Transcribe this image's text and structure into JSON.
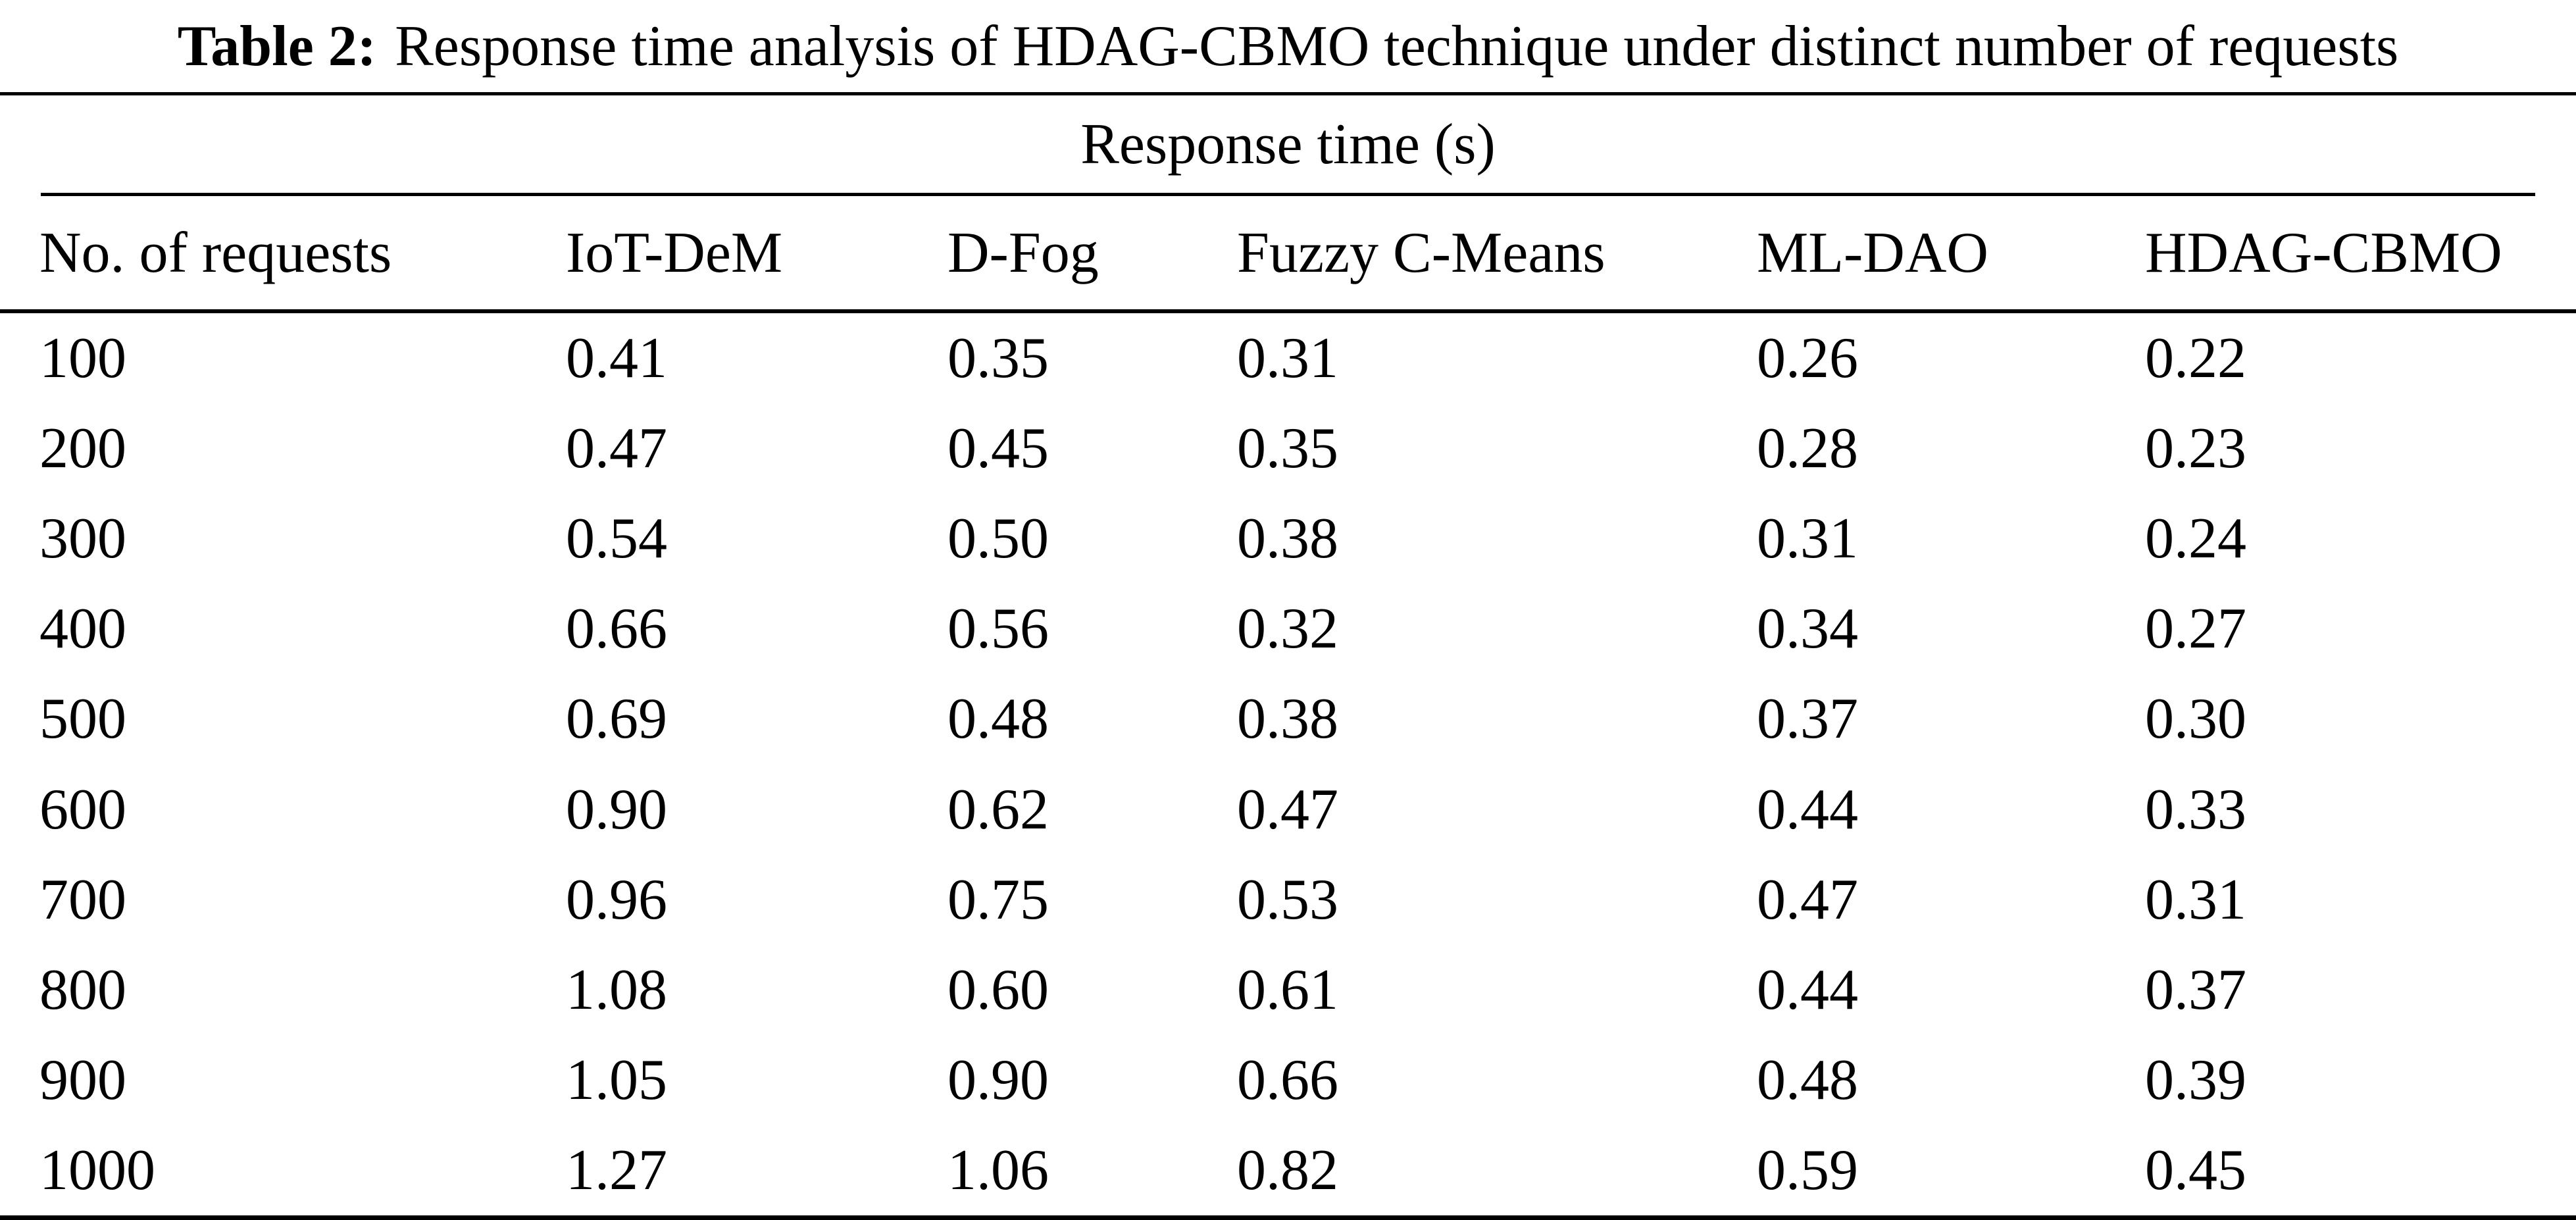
{
  "title": {
    "label": "Table 2:",
    "text": "Response time analysis of HDAG-CBMO technique under distinct number of requests"
  },
  "table": {
    "span_header": "Response time (s)",
    "columns": [
      "No. of requests",
      "IoT-DeM",
      "D-Fog",
      "Fuzzy C-Means",
      "ML-DAO",
      "HDAG-CBMO"
    ],
    "rows": [
      [
        "100",
        "0.41",
        "0.35",
        "0.31",
        "0.26",
        "0.22"
      ],
      [
        "200",
        "0.47",
        "0.45",
        "0.35",
        "0.28",
        "0.23"
      ],
      [
        "300",
        "0.54",
        "0.50",
        "0.38",
        "0.31",
        "0.24"
      ],
      [
        "400",
        "0.66",
        "0.56",
        "0.32",
        "0.34",
        "0.27"
      ],
      [
        "500",
        "0.69",
        "0.48",
        "0.38",
        "0.37",
        "0.30"
      ],
      [
        "600",
        "0.90",
        "0.62",
        "0.47",
        "0.44",
        "0.33"
      ],
      [
        "700",
        "0.96",
        "0.75",
        "0.53",
        "0.47",
        "0.31"
      ],
      [
        "800",
        "1.08",
        "0.60",
        "0.61",
        "0.44",
        "0.37"
      ],
      [
        "900",
        "1.05",
        "0.90",
        "0.66",
        "0.48",
        "0.39"
      ],
      [
        "1000",
        "1.27",
        "1.06",
        "0.82",
        "0.59",
        "0.45"
      ]
    ]
  },
  "colors": {
    "text": "#000000",
    "background": "#ffffff",
    "rule": "#000000"
  }
}
